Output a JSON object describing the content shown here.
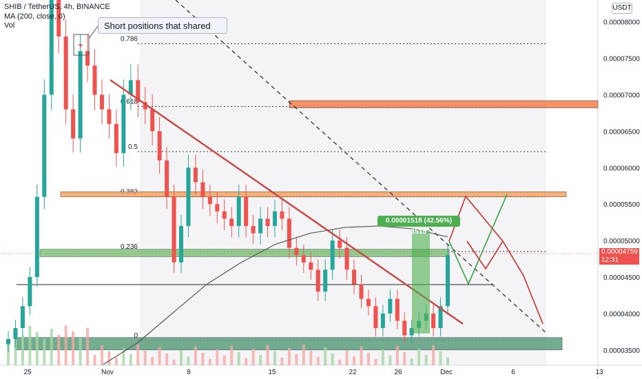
{
  "header": {
    "symbol_line": "SHIB / TetherUS, 4h, BINANCE",
    "ma_line": "MA (200, close, 0)",
    "vol_line": "Vol"
  },
  "currency_button": "USDT",
  "callout_text": "Short positions that shared",
  "measure_label": "0.00001518 (42.56%) 1518",
  "last_price": {
    "value": "0.00004759",
    "countdown": "12:31"
  },
  "chart_data": {
    "type": "candlestick",
    "title": "SHIB / TetherUS, 4h, BINANCE",
    "y_ticks": [
      "0.00008000",
      "0.00007500",
      "0.00007000",
      "0.00006500",
      "0.00006000",
      "0.00005500",
      "0.00005000",
      "0.00004500",
      "0.00004000",
      "0.00003500"
    ],
    "x_ticks": [
      "25",
      "Nov",
      "8",
      "15",
      "22",
      "26",
      "Dec",
      "6",
      "13"
    ],
    "ylim": [
      3.29e-05,
      8.3e-05
    ],
    "fib_levels": [
      {
        "label": "0.786",
        "price": 7.7e-05
      },
      {
        "label": "0.618",
        "price": 6.84e-05
      },
      {
        "label": "0.5",
        "price": 6.22e-05
      },
      {
        "label": "0.382",
        "price": 5.6e-05
      },
      {
        "label": "0.236",
        "price": 4.85e-05
      },
      {
        "label": "0",
        "price": 3.63e-05
      }
    ],
    "zones": [
      {
        "name": "resistance-upper",
        "color": "#f57f4f",
        "low": 6.82e-05,
        "high": 6.92e-05
      },
      {
        "name": "resistance-mid",
        "color": "#f8a25e",
        "low": 5.6e-05,
        "high": 5.67e-05
      },
      {
        "name": "support-green",
        "color": "#7cc47a",
        "low": 4.78e-05,
        "high": 4.88e-05
      },
      {
        "name": "support-bottom",
        "color": "#5a9e7c",
        "low": 3.5e-05,
        "high": 3.67e-05
      }
    ],
    "series": [
      {
        "name": "price",
        "close": [
          3.65e-05,
          3.8e-05,
          4.1e-05,
          4.5e-05,
          5.6e-05,
          7e-05,
          8.3e-05,
          7.8e-05,
          6.8e-05,
          6.4e-05,
          7.6e-05,
          7.4e-05,
          7e-05,
          6.8e-05,
          6.6e-05,
          6.2e-05,
          7e-05,
          7.2e-05,
          6.9e-05,
          6.8e-05,
          6.5e-05,
          6.1e-05,
          5.6e-05,
          4.7e-05,
          5.2e-05,
          6e-05,
          5.8e-05,
          5.6e-05,
          5.5e-05,
          5.4e-05,
          5.3e-05,
          5.2e-05,
          5.6e-05,
          5.2e-05,
          5.1e-05,
          5.3e-05,
          5.2e-05,
          5.4e-05,
          5.3e-05,
          4.9e-05,
          4.8e-05,
          4.7e-05,
          4.6e-05,
          4.3e-05,
          4.6e-05,
          5e-05,
          4.9e-05,
          4.6e-05,
          4.4e-05,
          4.2e-05,
          4.1e-05,
          3.8e-05,
          4e-05,
          4.2e-05,
          3.9e-05,
          3.7e-05,
          3.8e-05,
          3.9e-05,
          4e-05,
          3.8e-05,
          4.1e-05,
          4.8e-05
        ]
      }
    ],
    "ma200": [
      3.3e-05,
      3.6e-05,
      4e-05,
      4.4e-05,
      4.7e-05,
      4.95e-05,
      5.1e-05,
      5.18e-05,
      5.2e-05,
      5.16e-05,
      5.05e-05
    ],
    "colors": {
      "up": "#26a69a",
      "down": "#ef5350",
      "ma": "#555555",
      "trendline": "#c84b47",
      "projection_up": "#3b9f47",
      "projection_down": "#c9302c"
    }
  }
}
